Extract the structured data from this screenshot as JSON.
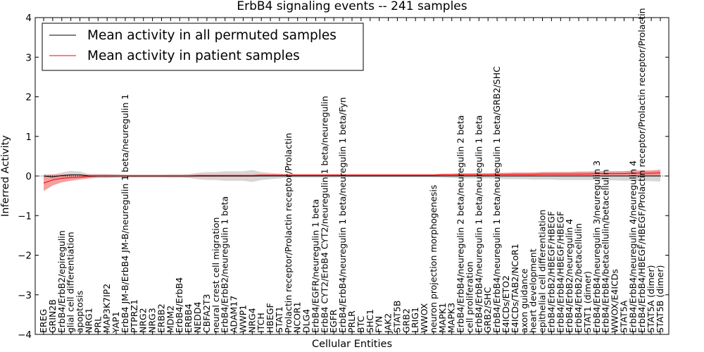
{
  "chart_data": {
    "type": "line",
    "title": "ErbB4 signaling events -- 241 samples",
    "xlabel": "Cellular Entities",
    "ylabel": "Inferred Activity",
    "ylim": [
      -4,
      4
    ],
    "yticks": [
      "4",
      "3",
      "2",
      "1",
      "0",
      "−1",
      "−2",
      "−3",
      "−4"
    ],
    "legend": {
      "placement": "top-left",
      "entries": [
        {
          "label": "Mean activity in all permuted samples",
          "color": "#000000"
        },
        {
          "label": "Mean activity in patient samples",
          "color": "#ff0000"
        }
      ]
    },
    "categories": [
      "EREG",
      "GRIN2B",
      "ErbB4/ErbB2/epiregulin",
      "glial cell differentiation",
      "apoptosis",
      "NRG1",
      "PRL",
      "MAP3K7IP2",
      "YAP1",
      "ErbB4 JM-B/ErbB4 JM-B/neuregulin 1 beta/neuregulin 1",
      "PTPRZ1",
      "NRG2",
      "NRG3",
      "ERBB2",
      "MDM2",
      "ErbB4/ErbB4",
      "ERBB4",
      "NEDD4",
      "CBFA2T3",
      "neural crest cell migration",
      "ErbB4/ErbB2/neuregulin 1 beta",
      "ADAM17",
      "WWP1",
      "NRG4",
      "ITCH",
      "HBEGF",
      "STAT1",
      "Prolactin receptor/Prolactin receptor/Prolactin",
      "NCOR1",
      "DLG4",
      "ErbB4/EGFR/neuregulin 1 beta",
      "ErbB4 CYT2/ErbB4 CYT2/neuregulin 1 beta/neuregulin",
      "EGFR",
      "ErbB4/ErbB4/neuregulin 1 beta/neuregulin 1 beta/Fyn",
      "PRLR",
      "BTC",
      "SHC1",
      "FYN",
      "JAK2",
      "STAT5B",
      "GRB2",
      "LRIG1",
      "WWOX",
      "neuron projection morphogenesis",
      "MAPK1",
      "MAPK3",
      "ErbB4/ErbB4/neuregulin 2 beta/neuregulin 2 beta",
      "cell proliferation",
      "ErbB4/ErbB4/neuregulin 1 beta/neuregulin 1 beta",
      "GRB2/SHC",
      "ErbB4/ErbB4/neuregulin 1 beta/neuregulin 1 beta/GRB2/SHC",
      "E4ICDs/ETO2",
      "E4ICDs/TAB2/NCoR1",
      "axon guidance",
      "heart development",
      "epithelial cell differentiation",
      "ErbB4/ErbB2/HBEGF/HBEGF",
      "ErbB4/ErbB4/HBEGF/HBEGF",
      "ErbB4/ErbB2/neuregulin 4",
      "ErbB4/ErbB2/betacellulin",
      "STAT1 (dimer)",
      "ErbB4/ErbB4/neuregulin 3/neuregulin 3",
      "ErbB4/ErbB4/betacellulin/betacellulin",
      "WWOX/E4ICDs",
      "STAT5A",
      "ErbB4/ErbB4/neuregulin 4/neuregulin 4",
      "ErbB4/ErbB4/HBEGF/HBEGF/Prolactin receptor/Prolactin receptor/Prolactin",
      "STAT5A (dimer)",
      "STAT5B (dimer)"
    ],
    "series": [
      {
        "name": "Mean activity in all permuted samples",
        "color": "#000000",
        "values": [
          0.0,
          -0.02,
          0.01,
          0.03,
          0.03,
          0.0,
          0.0,
          0.0,
          0.0,
          0.0,
          0.0,
          0.0,
          0.0,
          0.0,
          0.0,
          0.0,
          0.0,
          0.0,
          0.0,
          0.0,
          0.0,
          0.0,
          0.0,
          0.0,
          0.0,
          0.0,
          0.0,
          0.0,
          0.0,
          0.0,
          0.0,
          0.0,
          0.0,
          0.0,
          0.0,
          0.0,
          0.0,
          0.0,
          0.0,
          0.0,
          0.0,
          0.0,
          0.0,
          0.0,
          0.0,
          0.0,
          0.0,
          0.0,
          0.0,
          0.0,
          0.0,
          0.0,
          0.0,
          0.0,
          0.0,
          0.0,
          0.0,
          0.0,
          0.0,
          0.0,
          0.0,
          0.0,
          0.0,
          0.0,
          0.0,
          0.0,
          0.0,
          0.0,
          0.0
        ],
        "band": [
          0.05,
          0.05,
          0.08,
          0.1,
          0.08,
          0.05,
          0.05,
          0.05,
          0.05,
          0.03,
          0.03,
          0.03,
          0.03,
          0.03,
          0.04,
          0.04,
          0.05,
          0.08,
          0.1,
          0.1,
          0.12,
          0.12,
          0.12,
          0.15,
          0.1,
          0.08,
          0.06,
          0.04,
          0.04,
          0.04,
          0.04,
          0.04,
          0.04,
          0.03,
          0.03,
          0.03,
          0.03,
          0.03,
          0.03,
          0.03,
          0.03,
          0.03,
          0.03,
          0.03,
          0.04,
          0.05,
          0.06,
          0.06,
          0.06,
          0.06,
          0.07,
          0.08,
          0.08,
          0.08,
          0.09,
          0.09,
          0.09,
          0.1,
          0.1,
          0.1,
          0.1,
          0.1,
          0.11,
          0.11,
          0.12,
          0.12,
          0.13,
          0.13,
          0.14
        ]
      },
      {
        "name": "Mean activity in patient samples",
        "color": "#ff0000",
        "values": [
          -0.18,
          -0.1,
          -0.06,
          -0.04,
          -0.03,
          -0.01,
          0.0,
          0.0,
          0.0,
          0.0,
          0.0,
          0.0,
          0.0,
          0.0,
          0.0,
          0.0,
          0.0,
          0.01,
          0.01,
          0.01,
          0.01,
          0.01,
          0.01,
          0.01,
          0.02,
          0.02,
          0.02,
          0.02,
          0.02,
          0.02,
          0.02,
          0.02,
          0.02,
          0.02,
          0.02,
          0.02,
          0.02,
          0.02,
          0.02,
          0.02,
          0.02,
          0.02,
          0.02,
          0.02,
          0.03,
          0.03,
          0.03,
          0.03,
          0.03,
          0.03,
          0.04,
          0.04,
          0.04,
          0.04,
          0.04,
          0.05,
          0.05,
          0.05,
          0.05,
          0.05,
          0.05,
          0.06,
          0.06,
          0.06,
          0.06,
          0.07,
          0.07,
          0.07,
          0.08
        ],
        "band": [
          0.2,
          0.14,
          0.1,
          0.08,
          0.06,
          0.05,
          0.04,
          0.04,
          0.03,
          0.03,
          0.03,
          0.03,
          0.03,
          0.03,
          0.03,
          0.03,
          0.03,
          0.03,
          0.03,
          0.03,
          0.03,
          0.03,
          0.03,
          0.03,
          0.03,
          0.03,
          0.03,
          0.03,
          0.03,
          0.03,
          0.03,
          0.03,
          0.03,
          0.03,
          0.03,
          0.03,
          0.03,
          0.03,
          0.03,
          0.03,
          0.03,
          0.03,
          0.03,
          0.03,
          0.03,
          0.03,
          0.04,
          0.04,
          0.04,
          0.04,
          0.04,
          0.04,
          0.05,
          0.05,
          0.05,
          0.05,
          0.05,
          0.05,
          0.05,
          0.06,
          0.06,
          0.06,
          0.06,
          0.06,
          0.06,
          0.07,
          0.07,
          0.07,
          0.08
        ]
      }
    ]
  }
}
